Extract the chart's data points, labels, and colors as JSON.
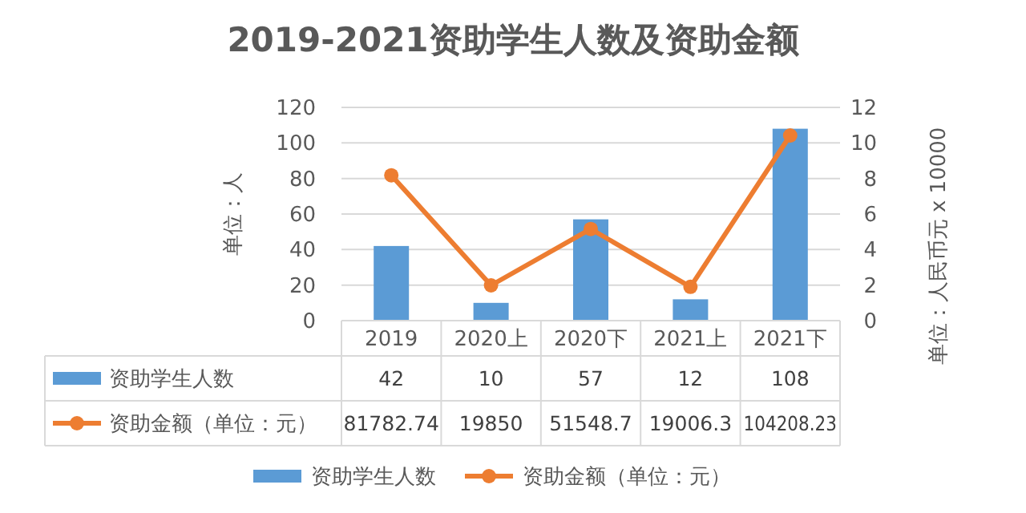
{
  "chart_data": {
    "type": "bar",
    "title": "2019-2021资助学生人数及资助金额",
    "ylabel": "单位：人",
    "y2label": "单位：人民币元 x 10000",
    "categories": [
      "2019",
      "2020上",
      "2020下",
      "2021上",
      "2021下"
    ],
    "series": [
      {
        "name": "资助学生人数",
        "color": "#5b9bd5",
        "values": [
          42,
          10,
          57,
          12,
          108
        ],
        "value_labels": [
          "42",
          "10",
          "57",
          "12",
          "108"
        ]
      },
      {
        "name": "资助金额（单位：元）",
        "type": "line",
        "axis": "y2",
        "color": "#ed7d31",
        "marker": "circle",
        "values": [
          8.178274,
          1.985,
          5.15487,
          1.90063,
          10.420823
        ]
      }
    ],
    "ylim": [
      0,
      120
    ],
    "yticks": [
      0,
      20,
      40,
      60,
      80,
      100,
      120
    ],
    "y2lim": [
      0,
      12
    ],
    "y2ticks": [
      0,
      2,
      4,
      6,
      8,
      10,
      12
    ],
    "annotations": [
      "81782.74",
      "19850",
      "51548.7",
      "19006.3",
      "104208.23"
    ],
    "grid": "y",
    "legend": "bottom"
  }
}
